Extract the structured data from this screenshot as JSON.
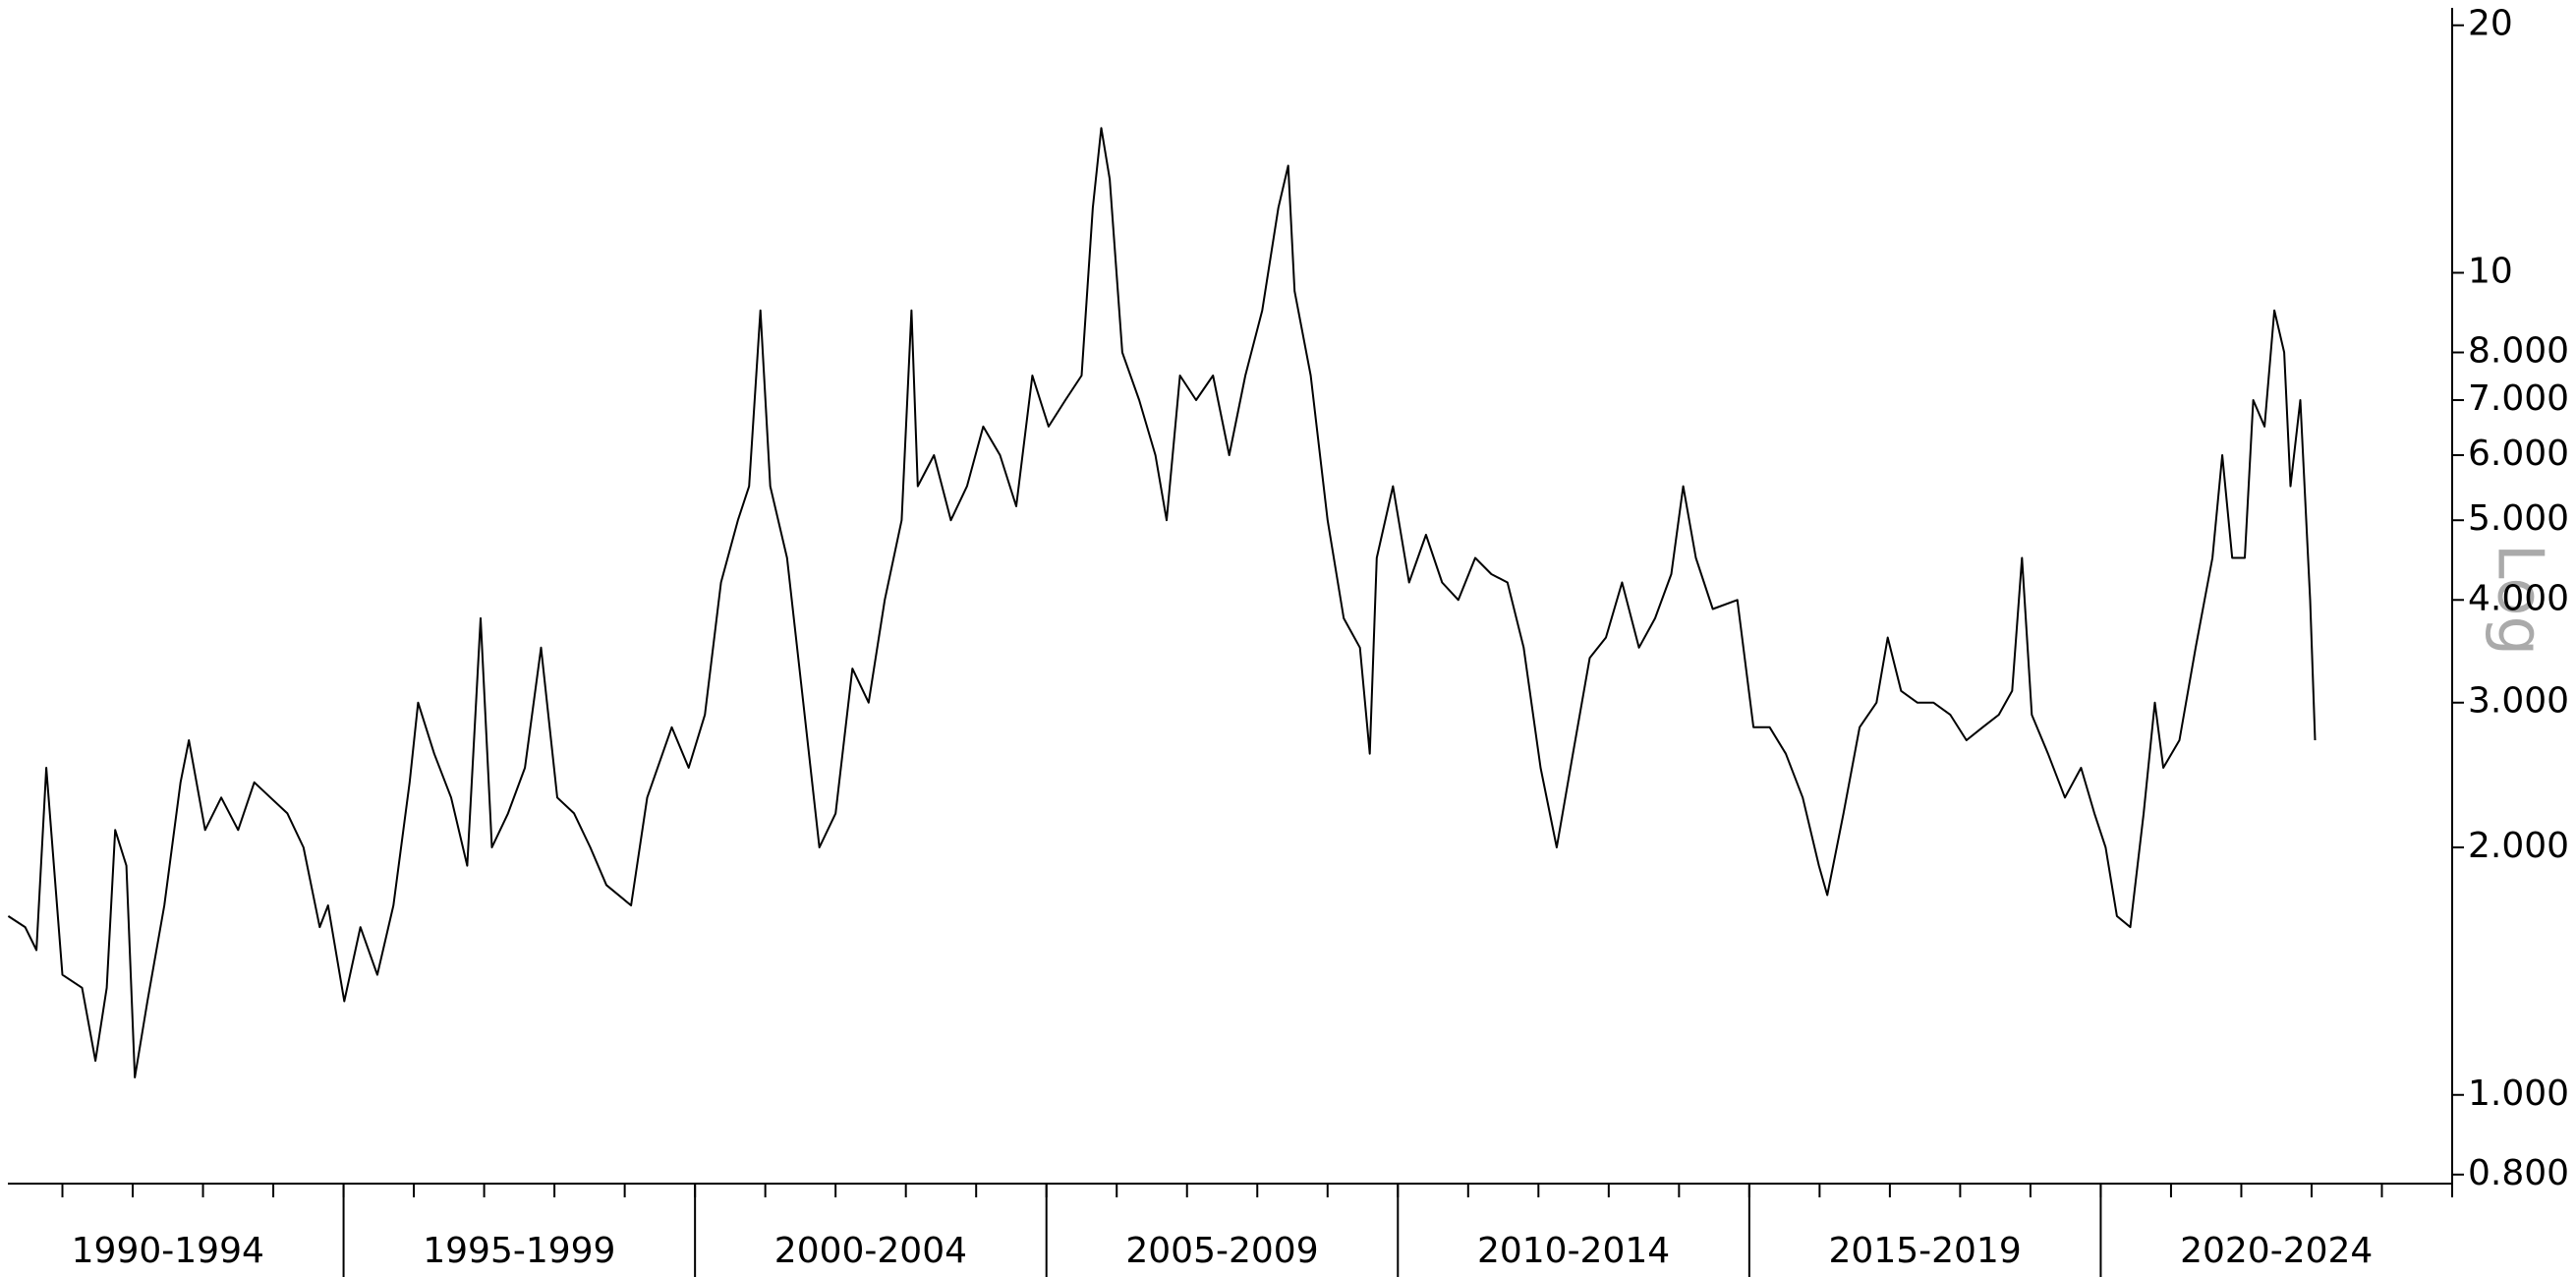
{
  "chart_data": {
    "type": "line",
    "log_scale": true,
    "scale_label": "Log",
    "color": "#000000",
    "categories": [
      "1990-1994",
      "1995-1999",
      "2000-2004",
      "2005-2009",
      "2010-2014",
      "2015-2019",
      "2020-2024"
    ],
    "category_starts": [
      1990,
      1995,
      2000,
      2005,
      2010,
      2015,
      2020
    ],
    "xlim": [
      1990,
      2025
    ],
    "xminorticks": [
      1990,
      1991,
      1992,
      1993,
      1994,
      1995,
      1996,
      1997,
      1998,
      1999,
      2000,
      2001,
      2002,
      2003,
      2004,
      2005,
      2006,
      2007,
      2008,
      2009,
      2010,
      2011,
      2012,
      2013,
      2014,
      2015,
      2016,
      2017,
      2018,
      2019,
      2020,
      2021,
      2022,
      2023,
      2024,
      2025
    ],
    "ylim": [
      0.78,
      21
    ],
    "yticks": [
      20,
      10,
      {
        "value": 8,
        "label": "8.000"
      },
      {
        "value": 7,
        "label": "7.000"
      },
      {
        "value": 6,
        "label": "6.000"
      },
      {
        "value": 5,
        "label": "5.000"
      },
      {
        "value": 4,
        "label": "4.000"
      },
      {
        "value": 3,
        "label": "3.000"
      },
      {
        "value": 2,
        "label": "2.000"
      },
      {
        "value": 1,
        "label": "1.000"
      },
      {
        "value": 0.8,
        "label": "0.800"
      }
    ],
    "x": [
      1990.23,
      1990.47,
      1990.63,
      1990.77,
      1991.0,
      1991.28,
      1991.47,
      1991.63,
      1991.75,
      1991.91,
      1992.03,
      1992.21,
      1992.45,
      1992.68,
      1992.8,
      1993.03,
      1993.26,
      1993.5,
      1993.73,
      1993.96,
      1994.2,
      1994.43,
      1994.66,
      1994.78,
      1995.01,
      1995.24,
      1995.48,
      1995.71,
      1995.94,
      1996.06,
      1996.29,
      1996.53,
      1996.76,
      1996.95,
      1997.11,
      1997.34,
      1997.58,
      1997.81,
      1998.04,
      1998.28,
      1998.51,
      1998.74,
      1999.09,
      1999.32,
      1999.67,
      1999.91,
      2000.14,
      2000.37,
      2000.61,
      2000.77,
      2000.93,
      2001.07,
      2001.31,
      2001.54,
      2001.77,
      2002.0,
      2002.24,
      2002.47,
      2002.7,
      2002.94,
      2003.08,
      2003.17,
      2003.4,
      2003.64,
      2003.87,
      2004.1,
      2004.34,
      2004.57,
      2004.8,
      2005.03,
      2005.27,
      2005.5,
      2005.66,
      2005.78,
      2005.9,
      2006.08,
      2006.32,
      2006.55,
      2006.71,
      2006.9,
      2007.13,
      2007.37,
      2007.6,
      2007.83,
      2008.07,
      2008.3,
      2008.44,
      2008.53,
      2008.76,
      2009.0,
      2009.23,
      2009.46,
      2009.6,
      2009.7,
      2009.93,
      2010.16,
      2010.4,
      2010.63,
      2010.86,
      2011.1,
      2011.33,
      2011.56,
      2011.79,
      2012.03,
      2012.26,
      2012.49,
      2012.73,
      2012.96,
      2013.19,
      2013.43,
      2013.66,
      2013.89,
      2014.06,
      2014.24,
      2014.48,
      2014.83,
      2015.06,
      2015.29,
      2015.52,
      2015.76,
      2015.99,
      2016.11,
      2016.34,
      2016.57,
      2016.81,
      2016.97,
      2017.16,
      2017.39,
      2017.62,
      2017.86,
      2018.09,
      2018.32,
      2018.55,
      2018.74,
      2018.88,
      2019.02,
      2019.25,
      2019.49,
      2019.72,
      2019.91,
      2020.07,
      2020.23,
      2020.42,
      2020.61,
      2020.77,
      2020.89,
      2021.12,
      2021.35,
      2021.59,
      2021.73,
      2021.87,
      2022.05,
      2022.17,
      2022.33,
      2022.47,
      2022.61,
      2022.7,
      2022.84,
      2022.98,
      2023.05
    ],
    "values": [
      1.65,
      1.6,
      1.5,
      2.5,
      1.4,
      1.35,
      1.1,
      1.35,
      2.1,
      1.9,
      1.05,
      1.3,
      1.7,
      2.4,
      2.7,
      2.1,
      2.3,
      2.1,
      2.4,
      2.3,
      2.2,
      2.0,
      1.6,
      1.7,
      1.3,
      1.6,
      1.4,
      1.7,
      2.4,
      3.0,
      2.6,
      2.3,
      1.9,
      3.8,
      2.0,
      2.2,
      2.5,
      3.5,
      2.3,
      2.2,
      2.0,
      1.8,
      1.7,
      2.3,
      2.8,
      2.5,
      2.9,
      4.2,
      5.0,
      5.5,
      9.0,
      5.5,
      4.5,
      3.0,
      2.0,
      2.2,
      3.3,
      3.0,
      4.0,
      5.0,
      9.0,
      5.5,
      6.0,
      5.0,
      5.5,
      6.5,
      6.0,
      5.2,
      7.5,
      6.5,
      7.0,
      7.5,
      12,
      15,
      13,
      8,
      7,
      6,
      5,
      7.5,
      7,
      7.5,
      6.0,
      7.5,
      9,
      12,
      13.5,
      9.5,
      7.5,
      5.0,
      3.8,
      3.5,
      2.6,
      4.5,
      5.5,
      4.2,
      4.8,
      4.2,
      4.0,
      4.5,
      4.3,
      4.2,
      3.5,
      2.5,
      2.0,
      2.6,
      3.4,
      3.6,
      4.2,
      3.5,
      3.8,
      4.3,
      5.5,
      4.5,
      3.9,
      4.0,
      2.8,
      2.8,
      2.6,
      2.3,
      1.9,
      1.75,
      2.2,
      2.8,
      3.0,
      3.6,
      3.1,
      3.0,
      3.0,
      2.9,
      2.7,
      2.8,
      2.9,
      3.1,
      4.5,
      2.9,
      2.6,
      2.3,
      2.5,
      2.2,
      2.0,
      1.65,
      1.6,
      2.2,
      3.0,
      2.5,
      2.7,
      3.5,
      4.5,
      6.0,
      4.5,
      4.5,
      7.0,
      6.5,
      9.0,
      8.0,
      5.5,
      7.0,
      4.0,
      2.7
    ]
  }
}
